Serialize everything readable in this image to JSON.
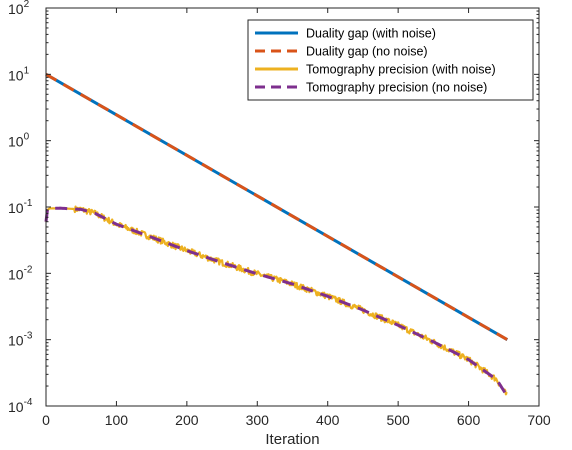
{
  "chart_data": {
    "type": "line",
    "title": "",
    "xlabel": "Iteration",
    "ylabel": "",
    "xlim": [
      0,
      700
    ],
    "ylim": [
      0.0001,
      100
    ],
    "yscale": "log",
    "grid": false,
    "legend_position": "top-right",
    "x_ticks": [
      "0",
      "100",
      "200",
      "300",
      "400",
      "500",
      "600",
      "700"
    ],
    "y_ticks": [
      {
        "base": "10",
        "exp": "2"
      },
      {
        "base": "10",
        "exp": "1"
      },
      {
        "base": "10",
        "exp": "0"
      },
      {
        "base": "10",
        "exp": "-1"
      },
      {
        "base": "10",
        "exp": "-2"
      },
      {
        "base": "10",
        "exp": "-3"
      },
      {
        "base": "10",
        "exp": "-4"
      }
    ],
    "series": [
      {
        "name": "Duality gap (with noise)",
        "color": "#0072BD",
        "style": "solid",
        "x": [
          0,
          655
        ],
        "y": [
          10,
          0.001
        ]
      },
      {
        "name": "Duality gap (no noise)",
        "color": "#D95319",
        "style": "dashed",
        "x": [
          0,
          655
        ],
        "y": [
          10,
          0.001
        ]
      },
      {
        "name": "Tomography precision (with noise)",
        "color": "#EDB120",
        "style": "solid",
        "noisy": true,
        "x": [
          0,
          2,
          5,
          20,
          50,
          70,
          100,
          150,
          200,
          250,
          300,
          350,
          400,
          450,
          500,
          550,
          600,
          640,
          655
        ],
        "y": [
          0.06,
          0.09,
          0.095,
          0.096,
          0.092,
          0.08,
          0.055,
          0.035,
          0.022,
          0.0145,
          0.0098,
          0.0069,
          0.0045,
          0.0028,
          0.00165,
          0.00093,
          0.0005,
          0.00025,
          0.00014
        ]
      },
      {
        "name": "Tomography precision (no noise)",
        "color": "#7E2F8E",
        "style": "dashed",
        "x": [
          0,
          2,
          5,
          20,
          50,
          70,
          100,
          150,
          200,
          250,
          300,
          350,
          400,
          450,
          500,
          550,
          600,
          640,
          655
        ],
        "y": [
          0.06,
          0.09,
          0.095,
          0.096,
          0.092,
          0.08,
          0.055,
          0.035,
          0.022,
          0.0145,
          0.0098,
          0.0069,
          0.0045,
          0.0028,
          0.00165,
          0.00093,
          0.0005,
          0.00025,
          0.00014
        ]
      }
    ]
  }
}
